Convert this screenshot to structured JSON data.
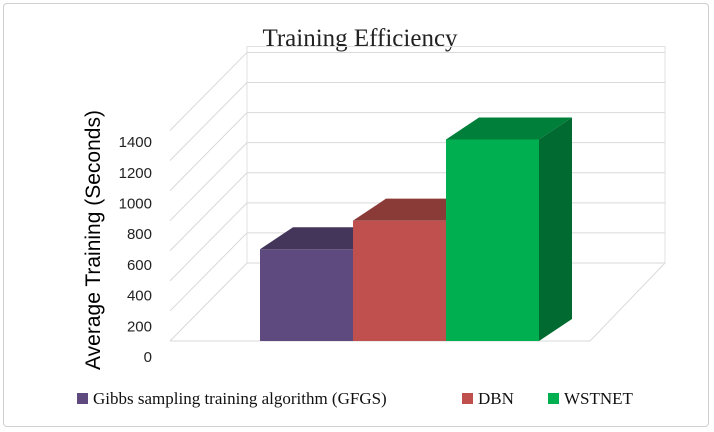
{
  "chart_data": {
    "type": "bar",
    "title": "Training Efficiency",
    "xlabel": "",
    "ylabel": "Average Training (Seconds)",
    "ylim": [
      0,
      1400
    ],
    "yticks": [
      0,
      200,
      400,
      600,
      800,
      1000,
      1200,
      1400
    ],
    "grid": true,
    "legend_position": "bottom",
    "three_d": true,
    "categories": [
      ""
    ],
    "series": [
      {
        "name": "Gibbs sampling training algorithm (GFGS)",
        "values": [
          610
        ],
        "color": "#5e4a7e"
      },
      {
        "name": "DBN",
        "values": [
          800
        ],
        "color": "#c0504d"
      },
      {
        "name": "WSTNET",
        "values": [
          1340
        ],
        "color": "#00b050"
      }
    ]
  }
}
